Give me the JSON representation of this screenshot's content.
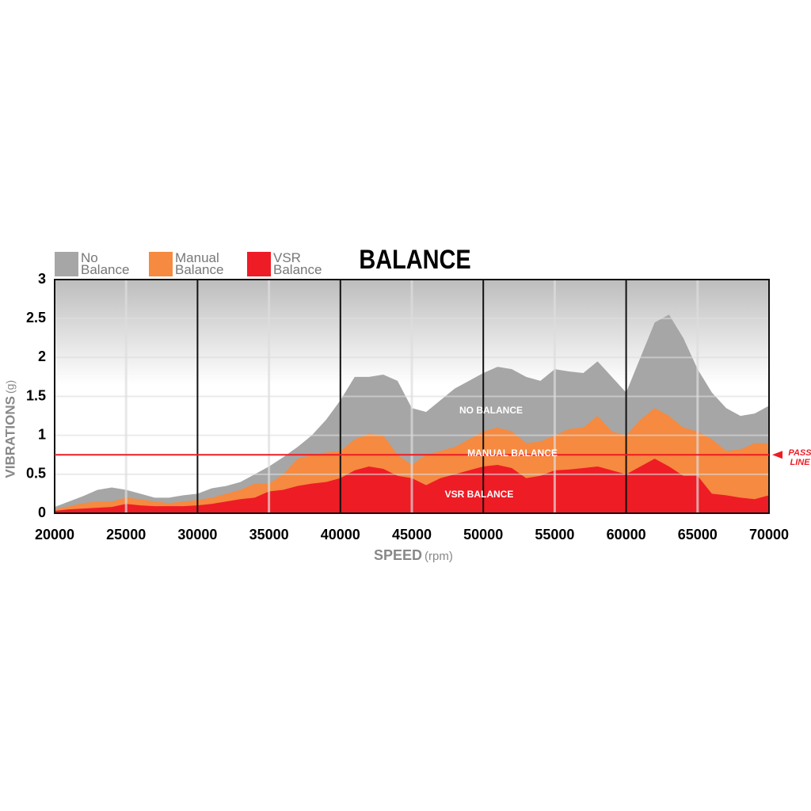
{
  "chart_data": {
    "type": "area",
    "title": "BALANCE",
    "x": [
      20000,
      21000,
      22000,
      23000,
      24000,
      25000,
      26000,
      27000,
      28000,
      29000,
      30000,
      31000,
      32000,
      33000,
      34000,
      35000,
      36000,
      37000,
      38000,
      39000,
      40000,
      41000,
      42000,
      43000,
      44000,
      45000,
      46000,
      47000,
      48000,
      49000,
      50000,
      51000,
      52000,
      53000,
      54000,
      55000,
      56000,
      57000,
      58000,
      59000,
      60000,
      61000,
      62000,
      63000,
      64000,
      65000,
      66000,
      67000,
      68000,
      69000,
      70000
    ],
    "series": [
      {
        "name": "No Balance",
        "color": "#a6a6a6",
        "label": "NO BALANCE",
        "values": [
          0.08,
          0.15,
          0.22,
          0.3,
          0.33,
          0.3,
          0.25,
          0.2,
          0.2,
          0.23,
          0.25,
          0.32,
          0.35,
          0.4,
          0.5,
          0.6,
          0.72,
          0.85,
          1.0,
          1.2,
          1.45,
          1.75,
          1.75,
          1.78,
          1.7,
          1.35,
          1.3,
          1.45,
          1.6,
          1.7,
          1.8,
          1.88,
          1.85,
          1.75,
          1.7,
          1.85,
          1.82,
          1.8,
          1.95,
          1.75,
          1.55,
          2.0,
          2.45,
          2.55,
          2.25,
          1.85,
          1.55,
          1.35,
          1.25,
          1.28,
          1.38
        ]
      },
      {
        "name": "Manual Balance",
        "color": "#f58a40",
        "label": "MANUAL BALANCE",
        "values": [
          0.05,
          0.09,
          0.13,
          0.15,
          0.15,
          0.2,
          0.18,
          0.15,
          0.13,
          0.15,
          0.17,
          0.2,
          0.25,
          0.3,
          0.38,
          0.38,
          0.5,
          0.7,
          0.75,
          0.78,
          0.8,
          0.95,
          1.02,
          1.0,
          0.75,
          0.62,
          0.75,
          0.8,
          0.85,
          0.95,
          1.05,
          1.1,
          1.05,
          0.9,
          0.92,
          1.0,
          1.08,
          1.1,
          1.25,
          1.05,
          1.0,
          1.2,
          1.35,
          1.25,
          1.1,
          1.05,
          0.95,
          0.8,
          0.82,
          0.9,
          0.9
        ]
      },
      {
        "name": "VSR Balance",
        "color": "#ee1c25",
        "label": "VSR BALANCE",
        "values": [
          0.03,
          0.05,
          0.06,
          0.07,
          0.08,
          0.12,
          0.1,
          0.09,
          0.09,
          0.09,
          0.1,
          0.12,
          0.15,
          0.18,
          0.2,
          0.28,
          0.3,
          0.35,
          0.38,
          0.4,
          0.45,
          0.55,
          0.6,
          0.57,
          0.48,
          0.45,
          0.36,
          0.45,
          0.5,
          0.55,
          0.6,
          0.62,
          0.58,
          0.45,
          0.48,
          0.55,
          0.56,
          0.58,
          0.6,
          0.55,
          0.5,
          0.6,
          0.7,
          0.6,
          0.48,
          0.48,
          0.25,
          0.23,
          0.2,
          0.18,
          0.23
        ]
      }
    ],
    "pass_line": {
      "value": 0.75,
      "label": "PASS LINE",
      "color": "#ee1c25"
    },
    "x_label": "SPEED",
    "x_unit": "(rpm)",
    "y_label": "VIBRATIONS",
    "y_unit": "(g)",
    "xlim": [
      20000,
      70000
    ],
    "xticks": [
      20000,
      25000,
      30000,
      35000,
      40000,
      45000,
      50000,
      55000,
      60000,
      65000,
      70000
    ],
    "ylim": [
      0,
      3
    ],
    "yticks": [
      0,
      0.5,
      1,
      1.5,
      2,
      2.5,
      3
    ],
    "grid": true
  }
}
